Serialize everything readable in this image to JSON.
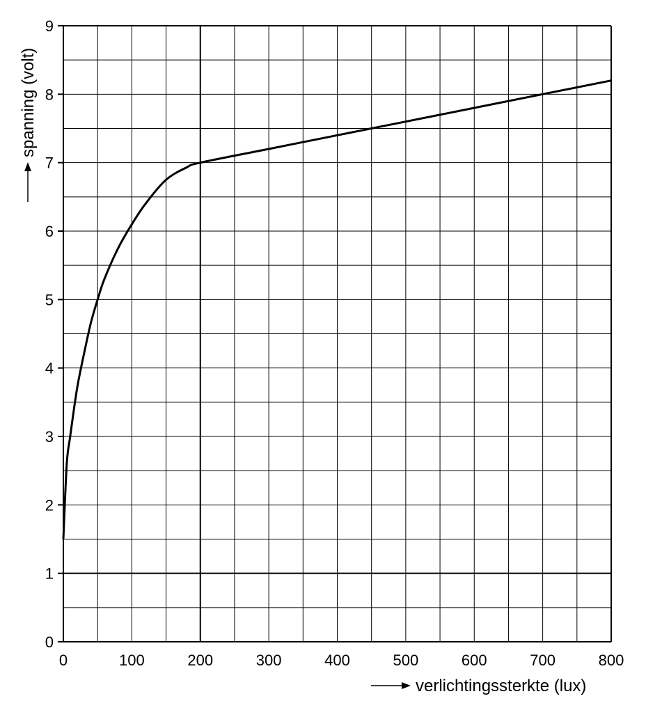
{
  "chart_data": {
    "type": "line",
    "title": "",
    "xlabel": "verlichtingssterkte (lux)",
    "ylabel": "spanning (volt)",
    "xlim": [
      0,
      800
    ],
    "ylim": [
      0,
      9
    ],
    "x_ticks": [
      "0",
      "100",
      "200",
      "300",
      "400",
      "500",
      "600",
      "700",
      "800"
    ],
    "y_ticks": [
      "0",
      "1",
      "2",
      "3",
      "4",
      "5",
      "6",
      "7",
      "8",
      "9"
    ],
    "x_grid_step": 50,
    "y_grid_step": 0.5,
    "grid": true,
    "legend": "none",
    "series": [
      {
        "x": [
          0,
          5,
          10,
          20,
          30,
          40,
          50,
          60,
          80,
          100,
          120,
          150,
          180,
          200,
          300,
          400,
          450,
          500,
          600,
          700,
          800
        ],
        "y": [
          1.5,
          2.6,
          3.0,
          3.7,
          4.2,
          4.65,
          5.0,
          5.3,
          5.75,
          6.1,
          6.4,
          6.75,
          6.93,
          7.0,
          7.2,
          7.4,
          7.5,
          7.6,
          7.8,
          8.0,
          8.2
        ]
      }
    ]
  }
}
